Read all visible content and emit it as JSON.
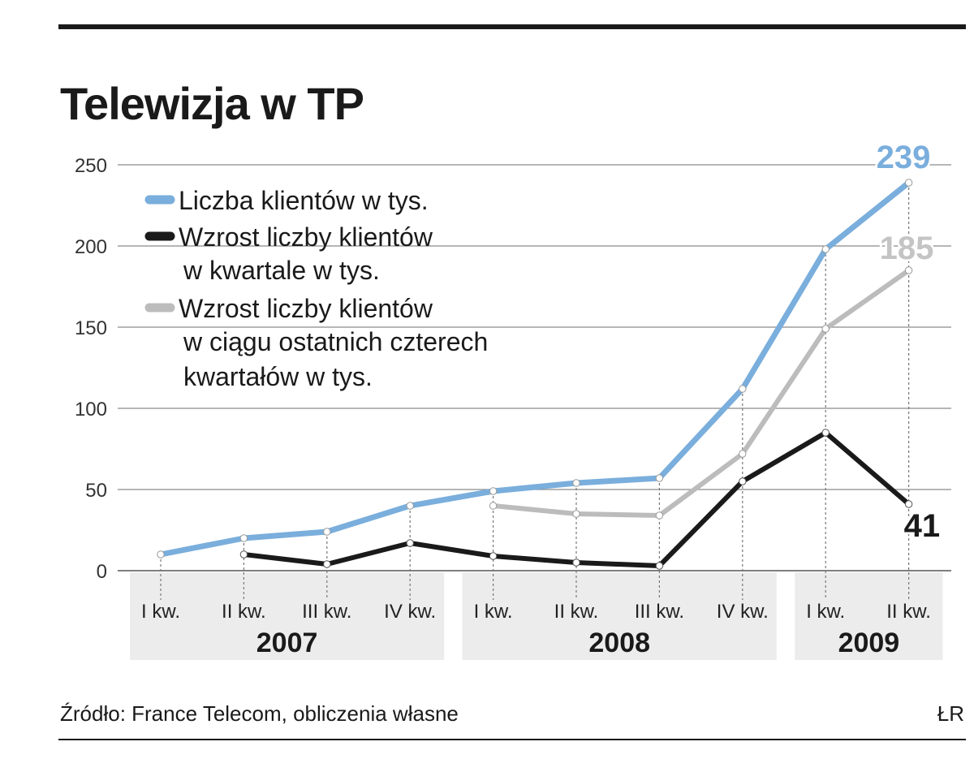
{
  "title": "Telewizja w TP",
  "footer": {
    "source": "Źródło: France Telecom, obliczenia własne",
    "author": "ŁR"
  },
  "chart_data": {
    "type": "line",
    "title": "Telewizja w TP",
    "xlabel": "",
    "ylabel": "",
    "ylim": [
      0,
      250
    ],
    "yticks": [
      0,
      50,
      100,
      150,
      200,
      250
    ],
    "grid": true,
    "legend_position": "top-left",
    "categories": [
      "I kw.",
      "II kw.",
      "III kw.",
      "IV kw.",
      "I kw.",
      "II kw.",
      "III kw.",
      "IV kw.",
      "I kw.",
      "II kw."
    ],
    "years": [
      {
        "label": "2007",
        "quarters": 4
      },
      {
        "label": "2008",
        "quarters": 4
      },
      {
        "label": "2009",
        "quarters": 2
      }
    ],
    "series": [
      {
        "name": "Liczba klientów w tys.",
        "legend_lines": [
          "Liczba klientów w tys."
        ],
        "color": "#7aaedc",
        "values": [
          10,
          20,
          24,
          40,
          49,
          54,
          57,
          112,
          198,
          239
        ]
      },
      {
        "name": "Wzrost liczby klientów w kwartale w tys.",
        "legend_lines": [
          "Wzrost liczby klientów",
          "w kwartale w tys."
        ],
        "color": "#1a1a1a",
        "values": [
          null,
          10,
          4,
          17,
          9,
          5,
          3,
          55,
          85,
          41
        ]
      },
      {
        "name": "Wzrost liczby klientów w ciągu ostatnich czterech kwartałów w tys.",
        "legend_lines": [
          "Wzrost liczby klientów",
          "w ciągu ostatnich czterech",
          "kwartałów w tys."
        ],
        "color": "#bcbcbc",
        "values": [
          null,
          null,
          null,
          null,
          40,
          35,
          34,
          72,
          149,
          185
        ]
      }
    ],
    "annotations": [
      {
        "series": 0,
        "text": "239",
        "color": "#7aaedc"
      },
      {
        "series": 2,
        "text": "185",
        "color": "#c4c4c4"
      },
      {
        "series": 1,
        "text": "41",
        "color": "#1a1a1a"
      }
    ]
  }
}
